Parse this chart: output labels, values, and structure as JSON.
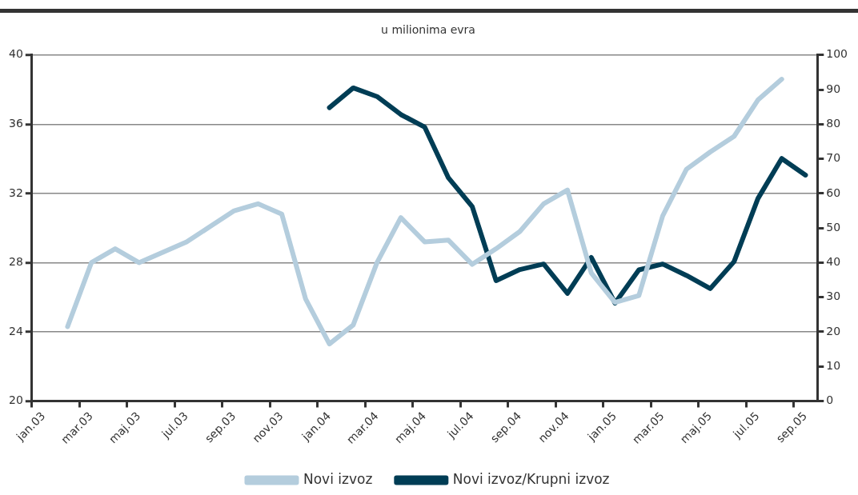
{
  "chart_data": {
    "type": "line",
    "title": "u milionima evra",
    "categories": [
      "jan.03",
      null,
      "mar.03",
      null,
      "maj.03",
      null,
      "jul.03",
      null,
      "sep.03",
      null,
      "nov.03",
      null,
      "jan.04",
      null,
      "mar.04",
      null,
      "maj.04",
      null,
      "jul.04",
      null,
      "sep.04",
      null,
      "nov.04",
      null,
      "jan.05",
      null,
      "mar.05",
      null,
      "maj.05",
      null,
      "jul.05",
      null,
      "sep.05"
    ],
    "series": [
      {
        "name": "Novi izvoz",
        "color": "#b4cddd",
        "values": [
          null,
          24.3,
          28.0,
          28.8,
          28.0,
          28.6,
          29.2,
          30.1,
          31.0,
          31.4,
          30.8,
          25.9,
          23.3,
          24.4,
          28.0,
          30.6,
          29.2,
          29.3,
          27.9,
          28.8,
          29.8,
          31.4,
          32.2,
          27.4,
          25.7,
          26.1,
          30.7,
          33.4,
          34.4,
          35.3,
          37.4,
          38.6,
          null
        ]
      },
      {
        "name": "Novi izvoz/Krupni izvoz",
        "color": "#003d55",
        "axis": "y2",
        "values": [
          null,
          null,
          null,
          null,
          null,
          null,
          null,
          null,
          null,
          null,
          null,
          null,
          84.8,
          90.5,
          88.0,
          82.8,
          79.2,
          64.5,
          56.2,
          34.8,
          38.0,
          39.6,
          31.1,
          41.5,
          28.3,
          37.9,
          39.6,
          36.3,
          32.5,
          40.3,
          58.5,
          70.1,
          65.3
        ]
      }
    ],
    "ylim": [
      20,
      40
    ],
    "yticks": [
      20,
      24,
      28,
      32,
      36,
      40
    ],
    "y2lim": [
      0,
      100
    ],
    "y2ticks": [
      0,
      10,
      20,
      30,
      40,
      50,
      60,
      70,
      80,
      90,
      100
    ],
    "grid": "y",
    "legend": "bottom",
    "marker": "none",
    "line_style": "solid"
  }
}
